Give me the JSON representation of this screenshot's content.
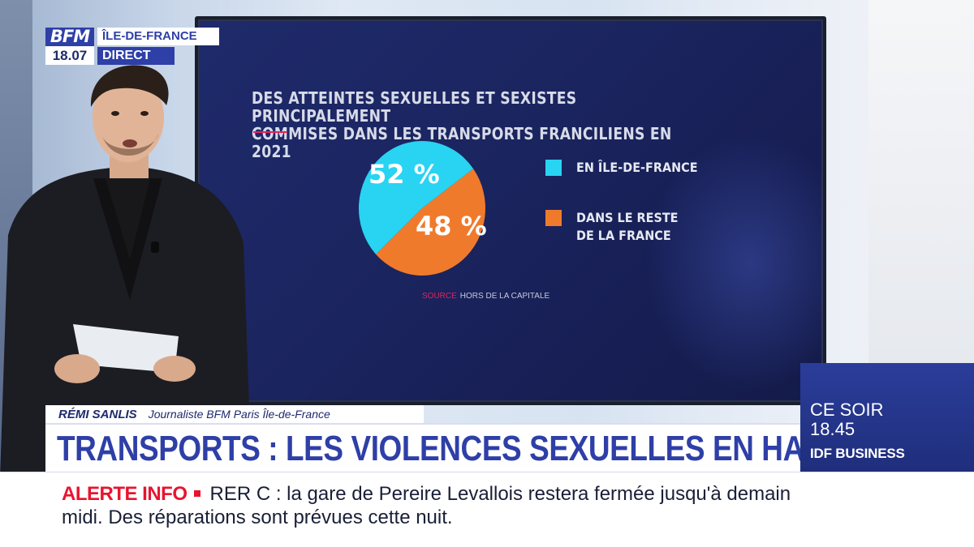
{
  "channel": {
    "logo": "BFM",
    "time": "18.07",
    "region": "ÎLE-DE-FRANCE",
    "live": "DIRECT"
  },
  "screen": {
    "title_line1": "DES ATTEINTES SEXUELLES ET SEXISTES PRINCIPALEMENT",
    "title_line2": "COMMISES DANS LES TRANSPORTS FRANCILIENS EN 2021",
    "legend": [
      {
        "label_line1": "EN ÎLE-DE-FRANCE",
        "label_line2": "",
        "color": "#29d3f2"
      },
      {
        "label_line1": "DANS LE RESTE",
        "label_line2": "DE LA FRANCE",
        "color": "#f07a2c"
      }
    ],
    "source_key": "SOURCE",
    "source_text": "HORS DE LA CAPITALE"
  },
  "chart_data": {
    "type": "pie",
    "categories": [
      "EN ÎLE-DE-FRANCE",
      "DANS LE RESTE DE LA FRANCE"
    ],
    "values": [
      52,
      48
    ],
    "labels": [
      "52 %",
      "48 %"
    ],
    "colors": [
      "#29d3f2",
      "#f07a2c"
    ],
    "title": "DES ATTEINTES SEXUELLES ET SEXISTES PRINCIPALEMENT COMMISES DANS LES TRANSPORTS FRANCILIENS EN 2021",
    "legend_position": "right"
  },
  "lower_third": {
    "name": "RÉMI SANLIS",
    "role": "Journaliste BFM Paris Île-de-France",
    "headline": "TRANSPORTS : LES VIOLENCES SEXUELLES EN HAUSSE"
  },
  "promo": {
    "line1": "CE SOIR",
    "line2": "18.45",
    "show": "IDF BUSINESS"
  },
  "ticker": {
    "label": "ALERTE INFO",
    "text": "RER C : la gare de Pereire Levallois restera fermée jusqu'à demain midi. Des réparations sont prévues cette nuit."
  },
  "colors": {
    "brand_blue": "#2e3fa7",
    "alert_red": "#e8142f",
    "accent_pink": "#e0245e"
  }
}
